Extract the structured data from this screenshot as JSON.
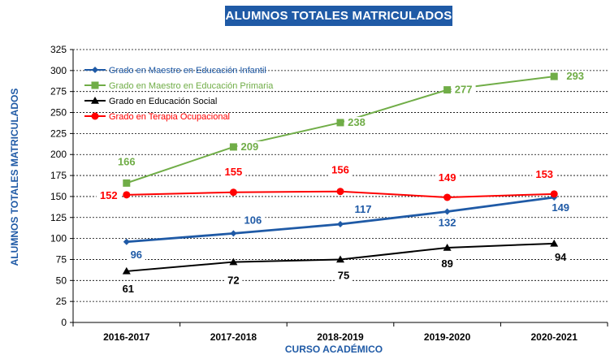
{
  "chart_data": {
    "type": "line",
    "title": "ALUMNOS TOTALES MATRICULADOS",
    "xlabel": "CURSO ACADÉMICO",
    "ylabel": "ALUMNOS TOTALES MATRICULADOS",
    "categories": [
      "2016-2017",
      "2017-2018",
      "2018-2019",
      "2019-2020",
      "2020-2021"
    ],
    "ylim": [
      0,
      325
    ],
    "yticks": [
      0,
      25,
      50,
      75,
      100,
      125,
      150,
      175,
      200,
      225,
      250,
      275,
      300,
      325
    ],
    "grid": true,
    "legend_position": "top-left",
    "series": [
      {
        "name": "Grado en Maestro en Educación Infantil",
        "values": [
          96,
          106,
          117,
          132,
          149
        ],
        "color": "#1f5aa6",
        "marker": "diamond",
        "label_position": "below"
      },
      {
        "name": "Grado en Maestro en Educación Primaria",
        "values": [
          166,
          209,
          238,
          277,
          293
        ],
        "color": "#70ad47",
        "marker": "square",
        "label_position": "mixed"
      },
      {
        "name": "Grado en Educación Social",
        "values": [
          61,
          72,
          75,
          89,
          94
        ],
        "color": "#000000",
        "marker": "triangle",
        "label_position": "below"
      },
      {
        "name": "Grado en Terapia Ocupacional",
        "values": [
          152,
          155,
          156,
          149,
          153
        ],
        "color": "#ff0000",
        "marker": "circle",
        "label_position": "above"
      }
    ]
  }
}
